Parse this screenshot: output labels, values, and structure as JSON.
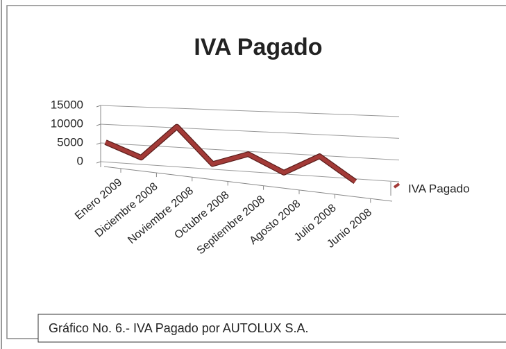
{
  "chart_data": {
    "type": "line",
    "title": "IVA Pagado",
    "categories": [
      "Enero 2009",
      "Diciembre 2008",
      "Noviembre 2008",
      "Octubre 2008",
      "Septiembre 2008",
      "Agosto 2008",
      "Julio 2008",
      "Junio 2008"
    ],
    "series": [
      {
        "name": "IVA Pagado",
        "color": "#a33a37",
        "values": [
          6000,
          2500,
          11000,
          2000,
          5000,
          1000,
          5500,
          0
        ]
      }
    ],
    "ylim": [
      0,
      15000
    ],
    "yticks": [
      0,
      5000,
      10000,
      15000
    ],
    "grid": true,
    "legend": "right",
    "caption": "Gráfico No. 6.- IVA Pagado por AUTOLUX S.A."
  }
}
